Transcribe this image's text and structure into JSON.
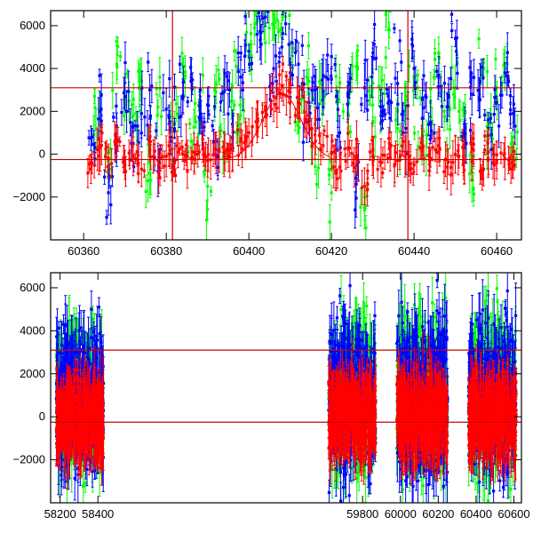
{
  "chart_data": [
    {
      "type": "scatter",
      "title": "",
      "xlabel": "",
      "ylabel": "",
      "xlim": [
        60352,
        60466
      ],
      "ylim": [
        -4000,
        6700
      ],
      "xticks": [
        60360,
        60380,
        60400,
        60420,
        60440,
        60460
      ],
      "yticks": [
        -2000,
        0,
        2000,
        4000,
        6000
      ],
      "hlines": [
        3100,
        -250
      ],
      "vlines": [
        60381.5,
        60438.5
      ],
      "series": [
        {
          "color": "#00ff00",
          "points": [
            [
              60363,
              1200
            ],
            [
              60366,
              -300
            ],
            [
              60368,
              4200
            ],
            [
              60370,
              2600
            ],
            [
              60372,
              1800
            ],
            [
              60374,
              3400
            ],
            [
              60376,
              -900
            ],
            [
              60378,
              2200
            ],
            [
              60382,
              1500
            ],
            [
              60384,
              3800
            ],
            [
              60386,
              600
            ],
            [
              60388,
              2400
            ],
            [
              60390,
              -1500
            ],
            [
              60392,
              2900
            ],
            [
              60394,
              1000
            ],
            [
              60396,
              3200
            ],
            [
              60398,
              1800
            ],
            [
              60400,
              4600
            ],
            [
              60402,
              6200
            ],
            [
              60404,
              5200
            ],
            [
              60406,
              6500
            ],
            [
              60408,
              5800
            ],
            [
              60410,
              4400
            ],
            [
              60412,
              2200
            ],
            [
              60414,
              3600
            ],
            [
              60416,
              1400
            ],
            [
              60418,
              2800
            ],
            [
              60420,
              -1800
            ],
            [
              60422,
              3300
            ],
            [
              60424,
              1900
            ],
            [
              60426,
              4100
            ],
            [
              60428,
              -2600
            ],
            [
              60430,
              2300
            ],
            [
              60432,
              3000
            ],
            [
              60434,
              5800
            ],
            [
              60436,
              1200
            ],
            [
              60438,
              2700
            ],
            [
              60440,
              3600
            ],
            [
              60442,
              900
            ],
            [
              60444,
              2400
            ],
            [
              60446,
              4700
            ],
            [
              60448,
              1600
            ],
            [
              60450,
              3100
            ],
            [
              60452,
              2000
            ],
            [
              60454,
              -1200
            ],
            [
              60456,
              3500
            ],
            [
              60458,
              1500
            ],
            [
              60460,
              2600
            ],
            [
              60462,
              4000
            ],
            [
              60464,
              800
            ]
          ]
        },
        {
          "color": "#0000ff",
          "points": [
            [
              60362,
              800
            ],
            [
              60364,
              2000
            ],
            [
              60366,
              -1800
            ],
            [
              60368,
              1300
            ],
            [
              60370,
              2700
            ],
            [
              60372,
              500
            ],
            [
              60374,
              1900
            ],
            [
              60376,
              3000
            ],
            [
              60378,
              -800
            ],
            [
              60380,
              2100
            ],
            [
              60382,
              1100
            ],
            [
              60384,
              2600
            ],
            [
              60386,
              3400
            ],
            [
              60388,
              1700
            ],
            [
              60390,
              2300
            ],
            [
              60392,
              600
            ],
            [
              60394,
              2900
            ],
            [
              60396,
              1400
            ],
            [
              60398,
              3600
            ],
            [
              60400,
              4800
            ],
            [
              60402,
              5600
            ],
            [
              60404,
              6400
            ],
            [
              60406,
              4000
            ],
            [
              60408,
              5000
            ],
            [
              60410,
              3800
            ],
            [
              60412,
              4200
            ],
            [
              60414,
              1500
            ],
            [
              60416,
              3000
            ],
            [
              60418,
              2200
            ],
            [
              60420,
              3500
            ],
            [
              60422,
              1000
            ],
            [
              60424,
              2700
            ],
            [
              60426,
              -1400
            ],
            [
              60428,
              3100
            ],
            [
              60430,
              4500
            ],
            [
              60432,
              1800
            ],
            [
              60434,
              2500
            ],
            [
              60436,
              3300
            ],
            [
              60438,
              1200
            ],
            [
              60440,
              4000
            ],
            [
              60442,
              2600
            ],
            [
              60444,
              1500
            ],
            [
              60446,
              3700
            ],
            [
              60448,
              2200
            ],
            [
              60450,
              5400
            ],
            [
              60452,
              1000
            ],
            [
              60454,
              2800
            ],
            [
              60456,
              3400
            ],
            [
              60458,
              1600
            ],
            [
              60460,
              2400
            ],
            [
              60462,
              3800
            ],
            [
              60464,
              1900
            ]
          ]
        },
        {
          "color": "#ff0000",
          "points": [
            [
              60362,
              -400
            ],
            [
              60364,
              300
            ],
            [
              60366,
              -200
            ],
            [
              60368,
              600
            ],
            [
              60370,
              -500
            ],
            [
              60372,
              -100
            ],
            [
              60374,
              -700
            ],
            [
              60376,
              200
            ],
            [
              60378,
              -300
            ],
            [
              60380,
              -100
            ],
            [
              60382,
              -400
            ],
            [
              60384,
              0
            ],
            [
              60386,
              -200
            ],
            [
              60388,
              100
            ],
            [
              60390,
              -300
            ],
            [
              60392,
              200
            ],
            [
              60394,
              0
            ],
            [
              60396,
              300
            ],
            [
              60398,
              600
            ],
            [
              60400,
              1000
            ],
            [
              60402,
              1500
            ],
            [
              60404,
              2200
            ],
            [
              60406,
              2700
            ],
            [
              60408,
              3200
            ],
            [
              60410,
              2900
            ],
            [
              60412,
              2400
            ],
            [
              60414,
              1600
            ],
            [
              60416,
              900
            ],
            [
              60418,
              400
            ],
            [
              60420,
              100
            ],
            [
              60422,
              -600
            ],
            [
              60424,
              300
            ],
            [
              60426,
              -200
            ],
            [
              60428,
              -1500
            ],
            [
              60430,
              200
            ],
            [
              60432,
              -400
            ],
            [
              60434,
              500
            ],
            [
              60436,
              -300
            ],
            [
              60438,
              100
            ],
            [
              60440,
              -500
            ],
            [
              60442,
              300
            ],
            [
              60444,
              -200
            ],
            [
              60446,
              400
            ],
            [
              60448,
              -600
            ],
            [
              60450,
              0
            ],
            [
              60452,
              -300
            ],
            [
              60454,
              300
            ],
            [
              60456,
              -800
            ],
            [
              60458,
              100
            ],
            [
              60460,
              -400
            ],
            [
              60462,
              -200
            ],
            [
              60464,
              -600
            ]
          ]
        }
      ]
    },
    {
      "type": "scatter",
      "title": "",
      "xlabel": "",
      "ylabel": "",
      "xlim": [
        58150,
        60640
      ],
      "ylim": [
        -4000,
        6700
      ],
      "xticks": [
        58200,
        58400,
        59800,
        60000,
        60200,
        60400,
        60600
      ],
      "yticks": [
        -2000,
        0,
        2000,
        4000,
        6000
      ],
      "hlines": [
        3100,
        -250
      ],
      "segments": [
        {
          "xrange": [
            58180,
            58430
          ],
          "center": 0,
          "spread": 1400
        },
        {
          "xrange": [
            59620,
            59870
          ],
          "center": 0,
          "spread": 1500
        },
        {
          "xrange": [
            59980,
            60250
          ],
          "center": 0,
          "spread": 1600
        },
        {
          "xrange": [
            60360,
            60612
          ],
          "center": 0,
          "spread": 1500
        }
      ],
      "series": [
        {
          "color": "#00ff00",
          "offset": 1200
        },
        {
          "color": "#0000ff",
          "offset": 1000
        },
        {
          "color": "#ff0000",
          "offset": 0
        }
      ]
    }
  ]
}
